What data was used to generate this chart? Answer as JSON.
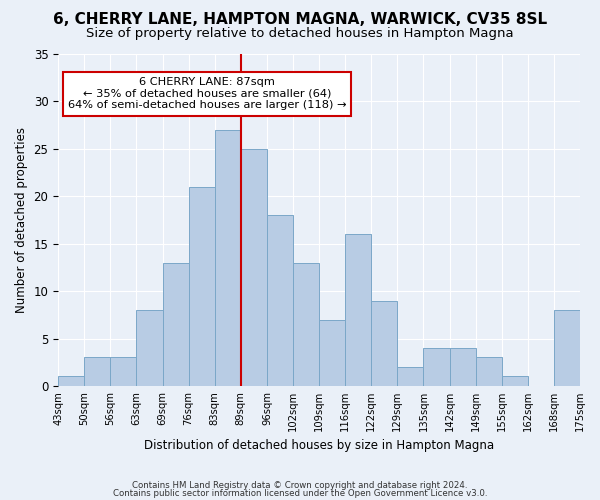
{
  "title": "6, CHERRY LANE, HAMPTON MAGNA, WARWICK, CV35 8SL",
  "subtitle": "Size of property relative to detached houses in Hampton Magna",
  "xlabel": "Distribution of detached houses by size in Hampton Magna",
  "ylabel": "Number of detached properties",
  "categories": [
    "43sqm",
    "50sqm",
    "56sqm",
    "63sqm",
    "69sqm",
    "76sqm",
    "83sqm",
    "89sqm",
    "96sqm",
    "102sqm",
    "109sqm",
    "116sqm",
    "122sqm",
    "129sqm",
    "135sqm",
    "142sqm",
    "149sqm",
    "155sqm",
    "162sqm",
    "168sqm",
    "175sqm"
  ],
  "values": [
    1,
    3,
    3,
    8,
    13,
    21,
    27,
    25,
    18,
    13,
    7,
    16,
    9,
    2,
    4,
    4,
    3,
    1,
    0,
    8
  ],
  "bar_color": "#b8cce4",
  "bar_edge_color": "#7ba7c8",
  "vline_x": 6.5,
  "vline_color": "#cc0000",
  "annotation_text": "6 CHERRY LANE: 87sqm\n← 35% of detached houses are smaller (64)\n64% of semi-detached houses are larger (118) →",
  "annotation_box_color": "#ffffff",
  "annotation_box_edge": "#cc0000",
  "ylim": [
    0,
    35
  ],
  "yticks": [
    0,
    5,
    10,
    15,
    20,
    25,
    30,
    35
  ],
  "bg_color": "#eaf0f8",
  "footer1": "Contains HM Land Registry data © Crown copyright and database right 2024.",
  "footer2": "Contains public sector information licensed under the Open Government Licence v3.0.",
  "title_fontsize": 11,
  "subtitle_fontsize": 9.5
}
